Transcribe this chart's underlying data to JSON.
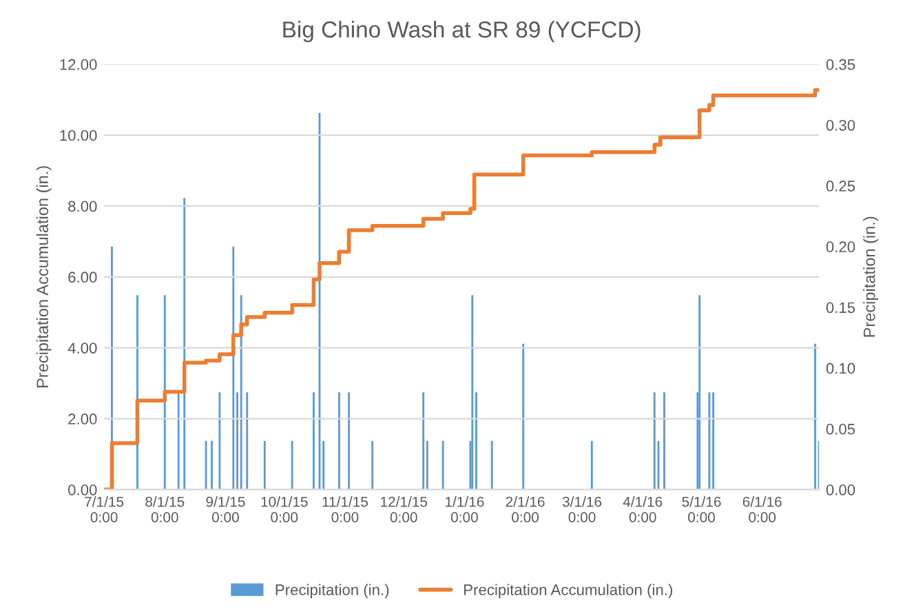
{
  "chart_data": {
    "type": "bar",
    "title": "Big Chino Wash at SR 89 (YCFCD)",
    "ylabel": "Precipitation Accumulation (in.)",
    "y2label": "Precipitation (in.)",
    "xlim": [
      "2015-07-01",
      "2016-06-30"
    ],
    "xticks": [
      {
        "value": "2015-07-01",
        "label": "7/1/15\n0:00"
      },
      {
        "value": "2015-08-01",
        "label": "8/1/15\n0:00"
      },
      {
        "value": "2015-09-01",
        "label": "9/1/15\n0:00"
      },
      {
        "value": "2015-10-01",
        "label": "10/1/15\n0:00"
      },
      {
        "value": "2015-11-01",
        "label": "11/1/15\n0:00"
      },
      {
        "value": "2015-12-01",
        "label": "12/1/15\n0:00"
      },
      {
        "value": "2016-01-01",
        "label": "1/1/16\n0:00"
      },
      {
        "value": "2016-02-01",
        "label": "2/1/16\n0:00"
      },
      {
        "value": "2016-03-01",
        "label": "3/1/16\n0:00"
      },
      {
        "value": "2016-04-01",
        "label": "4/1/16\n0:00"
      },
      {
        "value": "2016-05-01",
        "label": "5/1/16\n0:00"
      },
      {
        "value": "2016-06-01",
        "label": "6/1/16\n0:00"
      }
    ],
    "ylim": [
      0,
      12
    ],
    "yticks": [
      {
        "value": 0,
        "label": "0.00"
      },
      {
        "value": 2,
        "label": "2.00"
      },
      {
        "value": 4,
        "label": "4.00"
      },
      {
        "value": 6,
        "label": "6.00"
      },
      {
        "value": 8,
        "label": "8.00"
      },
      {
        "value": 10,
        "label": "10.00"
      },
      {
        "value": 12,
        "label": "12.00"
      }
    ],
    "y2lim": [
      0,
      0.35
    ],
    "y2ticks": [
      {
        "value": 0,
        "label": "0.00"
      },
      {
        "value": 0.05,
        "label": "0.05"
      },
      {
        "value": 0.1,
        "label": "0.10"
      },
      {
        "value": 0.15,
        "label": "0.15"
      },
      {
        "value": 0.2,
        "label": "0.20"
      },
      {
        "value": 0.25,
        "label": "0.25"
      },
      {
        "value": 0.3,
        "label": "0.30"
      },
      {
        "value": 0.35,
        "label": "0.35"
      }
    ],
    "grid": "y",
    "legend": "bottom",
    "series": [
      {
        "name": "Precipitation (in.)",
        "axis": "y2",
        "color": "#5b9bd5",
        "x": [
          "2015-07-05",
          "2015-07-18",
          "2015-08-01",
          "2015-08-08",
          "2015-08-11",
          "2015-08-22",
          "2015-08-25",
          "2015-08-29",
          "2015-09-05",
          "2015-09-07",
          "2015-09-09",
          "2015-09-12",
          "2015-09-21",
          "2015-10-05",
          "2015-10-16",
          "2015-10-19",
          "2015-10-21",
          "2015-10-29",
          "2015-11-03",
          "2015-11-15",
          "2015-12-11",
          "2015-12-13",
          "2015-12-21",
          "2016-01-04",
          "2016-01-05",
          "2016-01-07",
          "2016-01-15",
          "2016-01-31",
          "2016-03-06",
          "2016-04-07",
          "2016-04-09",
          "2016-04-12",
          "2016-04-29",
          "2016-04-30",
          "2016-05-05",
          "2016-05-07",
          "2016-06-28",
          "2016-06-30"
        ],
        "values": [
          0.2,
          0.16,
          0.16,
          0.08,
          0.24,
          0.04,
          0.04,
          0.08,
          0.2,
          0.08,
          0.16,
          0.08,
          0.04,
          0.04,
          0.08,
          0.31,
          0.04,
          0.08,
          0.08,
          0.04,
          0.08,
          0.04,
          0.04,
          0.04,
          0.16,
          0.08,
          0.04,
          0.12,
          0.04,
          0.08,
          0.04,
          0.08,
          0.08,
          0.16,
          0.08,
          0.08,
          0.12,
          0.04
        ]
      },
      {
        "name": "Precipitation Accumulation (in.)",
        "type": "step",
        "color": "#ed7d31",
        "x": [
          "2015-07-01",
          "2015-07-05",
          "2015-07-18",
          "2015-08-01",
          "2015-08-11",
          "2015-08-22",
          "2015-08-29",
          "2015-09-05",
          "2015-09-09",
          "2015-09-12",
          "2015-09-21",
          "2015-10-05",
          "2015-10-16",
          "2015-10-19",
          "2015-10-29",
          "2015-11-03",
          "2015-11-15",
          "2015-12-11",
          "2015-12-21",
          "2016-01-04",
          "2016-01-06",
          "2016-01-31",
          "2016-03-06",
          "2016-04-07",
          "2016-04-10",
          "2016-04-30",
          "2016-05-05",
          "2016-05-07",
          "2016-06-28",
          "2016-06-30"
        ],
        "values": [
          0,
          1.31,
          2.51,
          2.76,
          3.58,
          3.64,
          3.82,
          4.36,
          4.66,
          4.87,
          4.99,
          5.21,
          5.93,
          6.39,
          6.71,
          7.32,
          7.44,
          7.64,
          7.8,
          7.92,
          8.89,
          9.43,
          9.52,
          9.73,
          9.94,
          10.7,
          10.85,
          11.12,
          11.27,
          11.27
        ]
      }
    ]
  }
}
